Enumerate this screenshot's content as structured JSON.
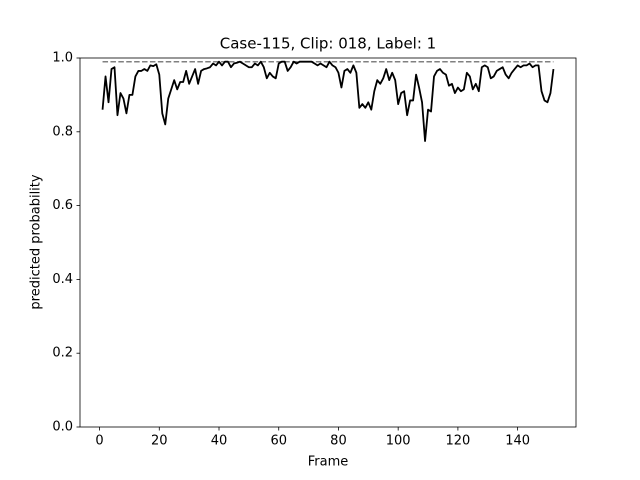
{
  "chart_data": {
    "type": "line",
    "title": "Case-115, Clip: 018, Label: 1",
    "xlabel": "Frame",
    "ylabel": "predicted probability",
    "x": [
      1,
      2,
      3,
      4,
      5,
      6,
      7,
      8,
      9,
      10,
      11,
      12,
      13,
      14,
      15,
      16,
      17,
      18,
      19,
      20,
      21,
      22,
      23,
      24,
      25,
      26,
      27,
      28,
      29,
      30,
      31,
      32,
      33,
      34,
      35,
      36,
      37,
      38,
      39,
      40,
      41,
      42,
      43,
      44,
      45,
      46,
      47,
      48,
      49,
      50,
      51,
      52,
      53,
      54,
      55,
      56,
      57,
      58,
      59,
      60,
      61,
      62,
      63,
      64,
      65,
      66,
      67,
      68,
      69,
      70,
      71,
      72,
      73,
      74,
      75,
      76,
      77,
      78,
      79,
      80,
      81,
      82,
      83,
      84,
      85,
      86,
      87,
      88,
      89,
      90,
      91,
      92,
      93,
      94,
      95,
      96,
      97,
      98,
      99,
      100,
      101,
      102,
      103,
      104,
      105,
      106,
      107,
      108,
      109,
      110,
      111,
      112,
      113,
      114,
      115,
      116,
      117,
      118,
      119,
      120,
      121,
      122,
      123,
      124,
      125,
      126,
      127,
      128,
      129,
      130,
      131,
      132,
      133,
      134,
      135,
      136,
      137,
      138,
      139,
      140,
      141,
      142,
      143,
      144,
      145,
      146,
      147,
      148,
      149,
      150,
      151,
      152
    ],
    "series": [
      {
        "color": "#000000",
        "values": [
          0.86,
          0.95,
          0.88,
          0.97,
          0.975,
          0.845,
          0.905,
          0.89,
          0.85,
          0.9,
          0.9,
          0.95,
          0.965,
          0.965,
          0.97,
          0.965,
          0.98,
          0.978,
          0.983,
          0.955,
          0.85,
          0.82,
          0.89,
          0.915,
          0.94,
          0.915,
          0.935,
          0.935,
          0.965,
          0.93,
          0.95,
          0.97,
          0.93,
          0.965,
          0.97,
          0.972,
          0.975,
          0.985,
          0.98,
          0.99,
          0.98,
          0.99,
          0.99,
          0.975,
          0.985,
          0.987,
          0.99,
          0.985,
          0.98,
          0.975,
          0.975,
          0.985,
          0.98,
          0.99,
          0.975,
          0.945,
          0.96,
          0.95,
          0.945,
          0.985,
          0.99,
          0.99,
          0.965,
          0.975,
          0.99,
          0.985,
          0.99,
          0.99,
          0.99,
          0.99,
          0.99,
          0.985,
          0.98,
          0.985,
          0.98,
          0.975,
          0.99,
          0.98,
          0.975,
          0.96,
          0.92,
          0.965,
          0.97,
          0.96,
          0.98,
          0.96,
          0.865,
          0.875,
          0.865,
          0.88,
          0.86,
          0.91,
          0.94,
          0.93,
          0.945,
          0.97,
          0.94,
          0.96,
          0.94,
          0.875,
          0.905,
          0.91,
          0.845,
          0.885,
          0.885,
          0.955,
          0.92,
          0.88,
          0.775,
          0.86,
          0.855,
          0.95,
          0.965,
          0.97,
          0.96,
          0.955,
          0.925,
          0.93,
          0.905,
          0.92,
          0.91,
          0.915,
          0.96,
          0.95,
          0.915,
          0.93,
          0.91,
          0.975,
          0.98,
          0.975,
          0.945,
          0.95,
          0.965,
          0.97,
          0.975,
          0.955,
          0.945,
          0.96,
          0.97,
          0.98,
          0.975,
          0.98,
          0.98,
          0.985,
          0.975,
          0.98,
          0.98,
          0.91,
          0.885,
          0.88,
          0.905,
          0.97
        ]
      }
    ],
    "hline": {
      "y": 0.99,
      "x": [
        1,
        152
      ],
      "color": "#808080",
      "style": "dashed"
    },
    "xlim": [
      -6.55,
      159.55
    ],
    "ylim": [
      0,
      1
    ],
    "xticks": [
      0,
      20,
      40,
      60,
      80,
      100,
      120,
      140
    ],
    "yticks": [
      {
        "value": 0,
        "label": "0.0"
      },
      0.2,
      0.4,
      0.6,
      0.8,
      {
        "value": 1,
        "label": "1.0"
      }
    ]
  }
}
